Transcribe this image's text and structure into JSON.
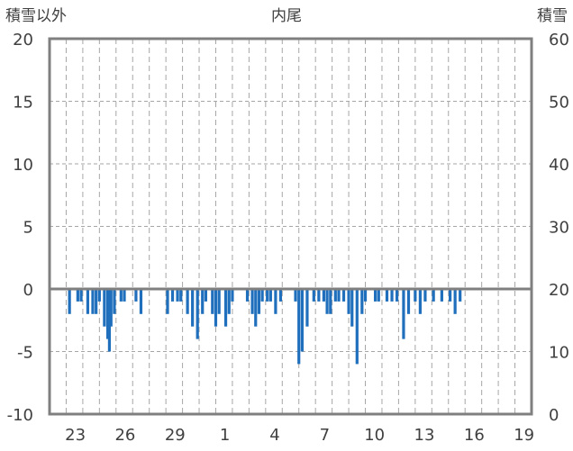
{
  "chart_data": {
    "type": "bar",
    "title": "内尾",
    "left_axis_label": "積雪以外",
    "right_axis_label": "積雪",
    "left_ylim": [
      -10,
      20
    ],
    "right_ylim": [
      0,
      60
    ],
    "left_ticks": [
      "20",
      "15",
      "10",
      "5",
      "0",
      "-5",
      "-10"
    ],
    "right_ticks": [
      "60",
      "50",
      "40",
      "30",
      "20",
      "10",
      "0"
    ],
    "x_ticks": [
      "23",
      "26",
      "29",
      "1",
      "4",
      "7",
      "10",
      "13",
      "16",
      "19"
    ],
    "day_range": [
      21,
      50
    ],
    "grid": true,
    "bar_color": "#1f6fbd",
    "values": [
      [
        22.2,
        -2
      ],
      [
        22.7,
        -1
      ],
      [
        22.9,
        -1
      ],
      [
        23.3,
        -2
      ],
      [
        23.6,
        -2
      ],
      [
        23.8,
        -2
      ],
      [
        24.0,
        -1
      ],
      [
        24.3,
        -3
      ],
      [
        24.5,
        -4
      ],
      [
        24.6,
        -5
      ],
      [
        24.7,
        -3
      ],
      [
        24.9,
        -2
      ],
      [
        25.3,
        -1
      ],
      [
        25.5,
        -1
      ],
      [
        26.2,
        -1
      ],
      [
        26.5,
        -2
      ],
      [
        28.1,
        -2
      ],
      [
        28.4,
        -1
      ],
      [
        28.7,
        -1
      ],
      [
        28.9,
        -1
      ],
      [
        29.3,
        -2
      ],
      [
        29.6,
        -3
      ],
      [
        29.9,
        -4
      ],
      [
        30.2,
        -2
      ],
      [
        30.4,
        -1
      ],
      [
        30.8,
        -2
      ],
      [
        31.0,
        -3
      ],
      [
        31.2,
        -2
      ],
      [
        31.6,
        -3
      ],
      [
        31.8,
        -2
      ],
      [
        32.0,
        -1
      ],
      [
        32.9,
        -1
      ],
      [
        33.2,
        -2
      ],
      [
        33.4,
        -3
      ],
      [
        33.6,
        -2
      ],
      [
        33.8,
        -1
      ],
      [
        34.1,
        -1
      ],
      [
        34.3,
        -1
      ],
      [
        34.6,
        -2
      ],
      [
        34.9,
        -1
      ],
      [
        35.8,
        -1
      ],
      [
        36.0,
        -6
      ],
      [
        36.2,
        -5
      ],
      [
        36.5,
        -3
      ],
      [
        36.9,
        -1
      ],
      [
        37.2,
        -1
      ],
      [
        37.5,
        -1
      ],
      [
        37.7,
        -2
      ],
      [
        37.9,
        -2
      ],
      [
        38.2,
        -1
      ],
      [
        38.4,
        -1
      ],
      [
        38.7,
        -1
      ],
      [
        39.0,
        -2
      ],
      [
        39.2,
        -3
      ],
      [
        39.5,
        -6
      ],
      [
        39.8,
        -2
      ],
      [
        40.0,
        -1
      ],
      [
        40.6,
        -1
      ],
      [
        40.8,
        -1
      ],
      [
        41.3,
        -1
      ],
      [
        41.6,
        -1
      ],
      [
        41.9,
        -1
      ],
      [
        42.3,
        -4
      ],
      [
        42.6,
        -2
      ],
      [
        43.0,
        -1
      ],
      [
        43.3,
        -2
      ],
      [
        43.6,
        -1
      ],
      [
        44.1,
        -1
      ],
      [
        44.6,
        -1
      ],
      [
        45.1,
        -1
      ],
      [
        45.4,
        -2
      ],
      [
        45.7,
        -1
      ]
    ]
  }
}
